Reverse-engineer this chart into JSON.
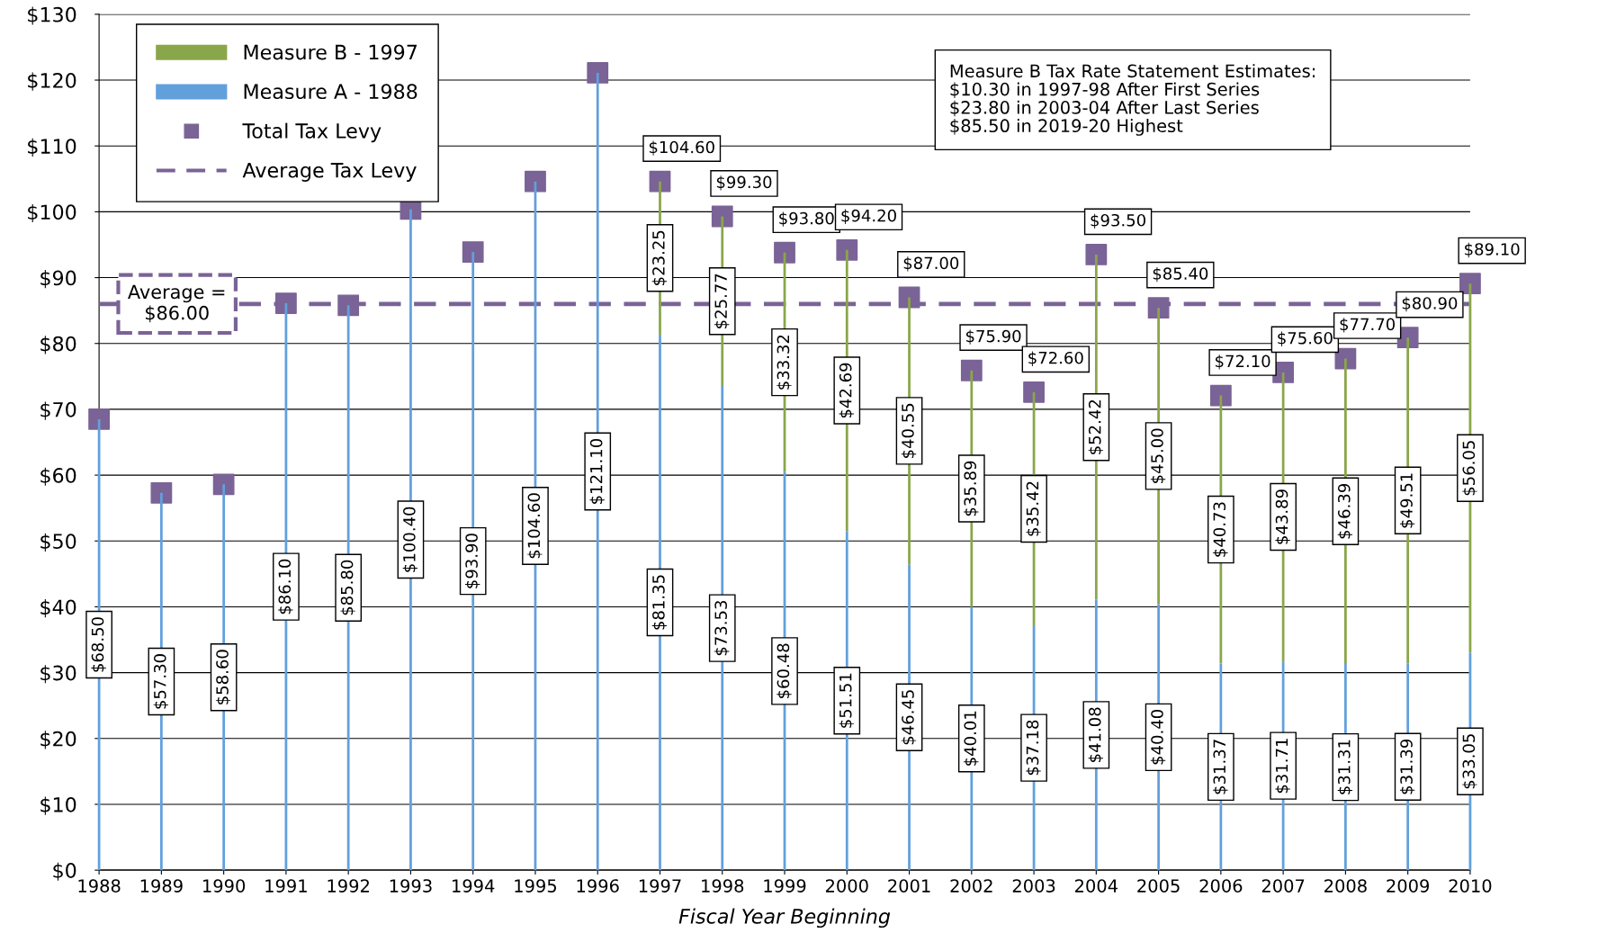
{
  "chart_data": {
    "type": "bar",
    "stacked": true,
    "categories": [
      "1988",
      "1989",
      "1990",
      "1991",
      "1992",
      "1993",
      "1994",
      "1995",
      "1996",
      "1997",
      "1998",
      "1999",
      "2000",
      "2001",
      "2002",
      "2003",
      "2004",
      "2005",
      "2006",
      "2007",
      "2008",
      "2009",
      "2010"
    ],
    "series": [
      {
        "name": "Measure A - 1988",
        "color": "#62a0dc",
        "values": [
          68.5,
          57.3,
          58.6,
          86.1,
          85.8,
          100.4,
          93.9,
          104.6,
          121.1,
          81.35,
          73.53,
          60.48,
          51.51,
          46.45,
          40.01,
          37.18,
          41.08,
          40.4,
          31.37,
          31.71,
          31.31,
          31.39,
          33.05
        ],
        "value_labels": [
          "$68.50",
          "$57.30",
          "$58.60",
          "$86.10",
          "$85.80",
          "$100.40",
          "$93.90",
          "$104.60",
          "$121.10",
          "$81.35",
          "$73.53",
          "$60.48",
          "$51.51",
          "$46.45",
          "$40.01",
          "$37.18",
          "$41.08",
          "$40.40",
          "$31.37",
          "$31.71",
          "$31.31",
          "$31.39",
          "$33.05"
        ]
      },
      {
        "name": "Measure B - 1997",
        "color": "#8aa64a",
        "values": [
          null,
          null,
          null,
          null,
          null,
          null,
          null,
          null,
          null,
          23.25,
          25.77,
          33.32,
          42.69,
          40.55,
          35.89,
          35.42,
          52.42,
          45.0,
          40.73,
          43.89,
          46.39,
          49.51,
          56.05
        ],
        "value_labels": [
          null,
          null,
          null,
          null,
          null,
          null,
          null,
          null,
          null,
          "$23.25",
          "$25.77",
          "$33.32",
          "$42.69",
          "$40.55",
          "$35.89",
          "$35.42",
          "$52.42",
          "$45.00",
          "$40.73",
          "$43.89",
          "$46.39",
          "$49.51",
          "$56.05"
        ]
      },
      {
        "name": "Total Tax Levy",
        "type": "scatter",
        "marker": "square",
        "color": "#7a6396",
        "values": [
          68.5,
          57.3,
          58.6,
          86.1,
          85.8,
          100.4,
          93.9,
          104.6,
          121.1,
          104.6,
          99.3,
          93.8,
          94.2,
          87.0,
          75.9,
          72.6,
          93.5,
          85.4,
          72.1,
          75.6,
          77.7,
          80.9,
          89.1
        ],
        "value_labels": [
          null,
          null,
          null,
          null,
          null,
          null,
          null,
          null,
          null,
          "$104.60",
          "$99.30",
          "$93.80",
          "$94.20",
          "$87.00",
          "$75.90",
          "$72.60",
          "$93.50",
          "$85.40",
          "$72.10",
          "$75.60",
          "$77.70",
          "$80.90",
          "$89.10"
        ]
      }
    ],
    "ref_lines": [
      {
        "axis": "y",
        "value": 86,
        "label": "Average Tax Levy",
        "color": "#7a6396",
        "line_style": "dashed"
      }
    ],
    "annotations": [
      {
        "text": "Average =\n$86.00",
        "y": 86
      },
      "Measure B Tax Rate Statement Estimates:\n$10.30 in 1997-98 After First Series\n$23.80 in 2003-04 After Last Series\n$85.50 in 2019-20 Highest"
    ],
    "xlabel": "Fiscal Year Beginning",
    "ylim": [
      0,
      130
    ],
    "yticks": [
      {
        "value": 0,
        "label": "$0"
      },
      {
        "value": 10,
        "label": "$10"
      },
      {
        "value": 20,
        "label": "$20"
      },
      {
        "value": 30,
        "label": "$30"
      },
      {
        "value": 40,
        "label": "$40"
      },
      {
        "value": 50,
        "label": "$50"
      },
      {
        "value": 60,
        "label": "$60"
      },
      {
        "value": 70,
        "label": "$70"
      },
      {
        "value": 80,
        "label": "$80"
      },
      {
        "value": 90,
        "label": "$90"
      },
      {
        "value": 100,
        "label": "$100"
      },
      {
        "value": 110,
        "label": "$110"
      },
      {
        "value": 120,
        "label": "$120"
      },
      {
        "value": 130,
        "label": "$130"
      }
    ],
    "grid": "y",
    "legend": "top left"
  }
}
